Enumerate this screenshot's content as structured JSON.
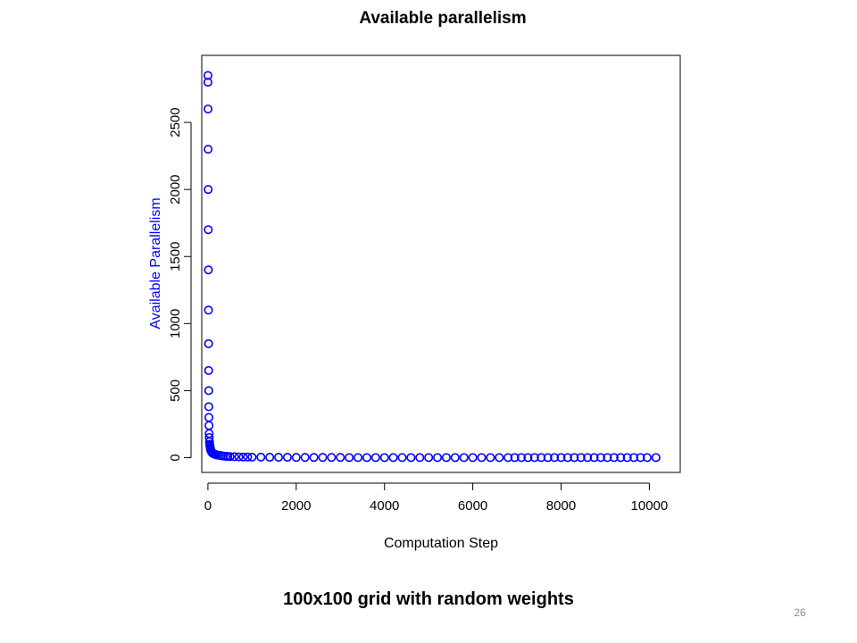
{
  "chart_data": {
    "type": "scatter",
    "title": "Available parallelism",
    "xlabel": "Computation Step",
    "ylabel": "Available Parallelism",
    "xlim": [
      -140,
      10700
    ],
    "ylim": [
      -110,
      3000
    ],
    "xticks": [
      0,
      2000,
      4000,
      6000,
      8000,
      10000
    ],
    "yticks": [
      0,
      500,
      1000,
      1500,
      2000,
      2500
    ],
    "grid": false,
    "legend": "none",
    "series_color": "#0000ff",
    "ylabel_color": "#0000ff",
    "series": [
      {
        "marker": "open-circle",
        "x": [
          0,
          0,
          2,
          4,
          6,
          8,
          10,
          12,
          14,
          16,
          18,
          20,
          22,
          25,
          28,
          30,
          35,
          40,
          45,
          50,
          55,
          60,
          70,
          80,
          90,
          100,
          120,
          140,
          160,
          180,
          200,
          250,
          300,
          350,
          400,
          450,
          500,
          600,
          700,
          800,
          900,
          1000,
          1200,
          1400,
          1600,
          1800,
          2000,
          2200,
          2400,
          2600,
          2800,
          3000,
          3200,
          3400,
          3600,
          3800,
          4000,
          4200,
          4400,
          4600,
          4800,
          5000,
          5200,
          5400,
          5600,
          5800,
          6000,
          6200,
          6400,
          6600,
          6800,
          6950,
          7100,
          7250,
          7400,
          7550,
          7700,
          7850,
          8000,
          8150,
          8300,
          8450,
          8600,
          8750,
          8900,
          9050,
          9200,
          9350,
          9500,
          9650,
          9800,
          9950,
          10150
        ],
        "y": [
          2850,
          2800,
          2600,
          2300,
          2000,
          1700,
          1400,
          1100,
          850,
          650,
          500,
          380,
          300,
          240,
          180,
          150,
          120,
          100,
          90,
          80,
          70,
          60,
          50,
          45,
          40,
          35,
          30,
          28,
          25,
          22,
          20,
          18,
          15,
          12,
          10,
          9,
          8,
          7,
          6,
          5,
          5,
          4,
          4,
          3,
          3,
          3,
          2,
          2,
          2,
          2,
          2,
          2,
          1,
          1,
          1,
          1,
          1,
          1,
          1,
          1,
          1,
          1,
          1,
          1,
          1,
          1,
          1,
          1,
          1,
          1,
          1,
          1,
          1,
          1,
          1,
          1,
          1,
          1,
          1,
          1,
          1,
          1,
          1,
          1,
          1,
          1,
          1,
          1,
          1,
          1,
          1,
          1,
          1
        ]
      }
    ]
  },
  "caption": "100x100 grid with random weights",
  "slide_number": "26"
}
